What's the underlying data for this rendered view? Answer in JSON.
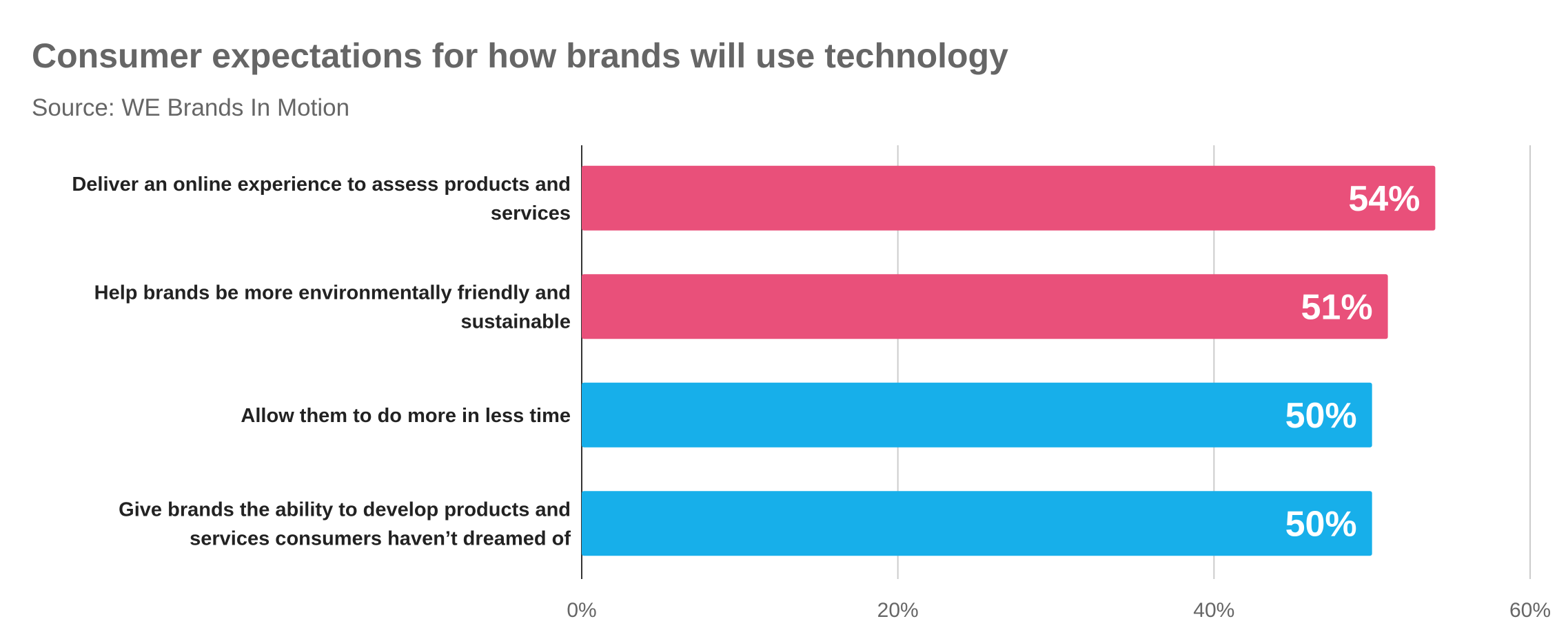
{
  "chart_data": {
    "type": "bar",
    "orientation": "horizontal",
    "title": "Consumer expectations for how brands will use technology",
    "subtitle": "Source: WE Brands In Motion",
    "categories": [
      [
        "Deliver an online experience to assess products and",
        "services"
      ],
      [
        "Help brands be more environmentally friendly and",
        "sustainable"
      ],
      [
        "Allow them to do more in less time"
      ],
      [
        "Give brands the ability to develop products and",
        "services consumers haven’t dreamed of"
      ]
    ],
    "values": [
      54,
      51,
      50,
      50
    ],
    "value_labels": [
      "54%",
      "51%",
      "50%",
      "50%"
    ],
    "bar_colors": [
      "#E9507A",
      "#E9507A",
      "#17AFEA",
      "#17AFEA"
    ],
    "xlim": [
      0,
      60
    ],
    "xticks": [
      0,
      20,
      40,
      60
    ],
    "xtick_labels": [
      "0%",
      "20%",
      "40%",
      "60%"
    ],
    "grid": true,
    "gridline_color": "#cccccc",
    "xlabel": "",
    "ylabel": ""
  }
}
